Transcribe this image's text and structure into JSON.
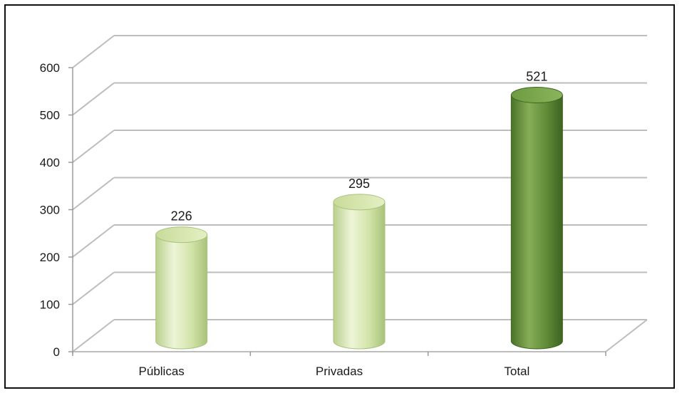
{
  "chart_data": {
    "type": "bar",
    "title": "",
    "xlabel": "",
    "ylabel": "",
    "categories": [
      "Públicas",
      "Privadas",
      "Total"
    ],
    "values": [
      226,
      295,
      521
    ],
    "data_labels": [
      "226",
      "295",
      "521"
    ],
    "ylim": [
      0,
      600
    ],
    "yticks": [
      0,
      100,
      200,
      300,
      400,
      500,
      600
    ],
    "ytick_labels": [
      "0",
      "100",
      "200",
      "300",
      "400",
      "500",
      "600"
    ],
    "grid": true,
    "legend": "none",
    "style": "3d-cylinder",
    "colors": {
      "light_bar": "#cfe0a4",
      "light_bar_edge": "#a9c27c",
      "dark_bar": "#5f8a36",
      "dark_bar_edge": "#3f6422",
      "grid": "#bdbdbd"
    },
    "bar_colors": [
      "light",
      "light",
      "dark"
    ]
  }
}
